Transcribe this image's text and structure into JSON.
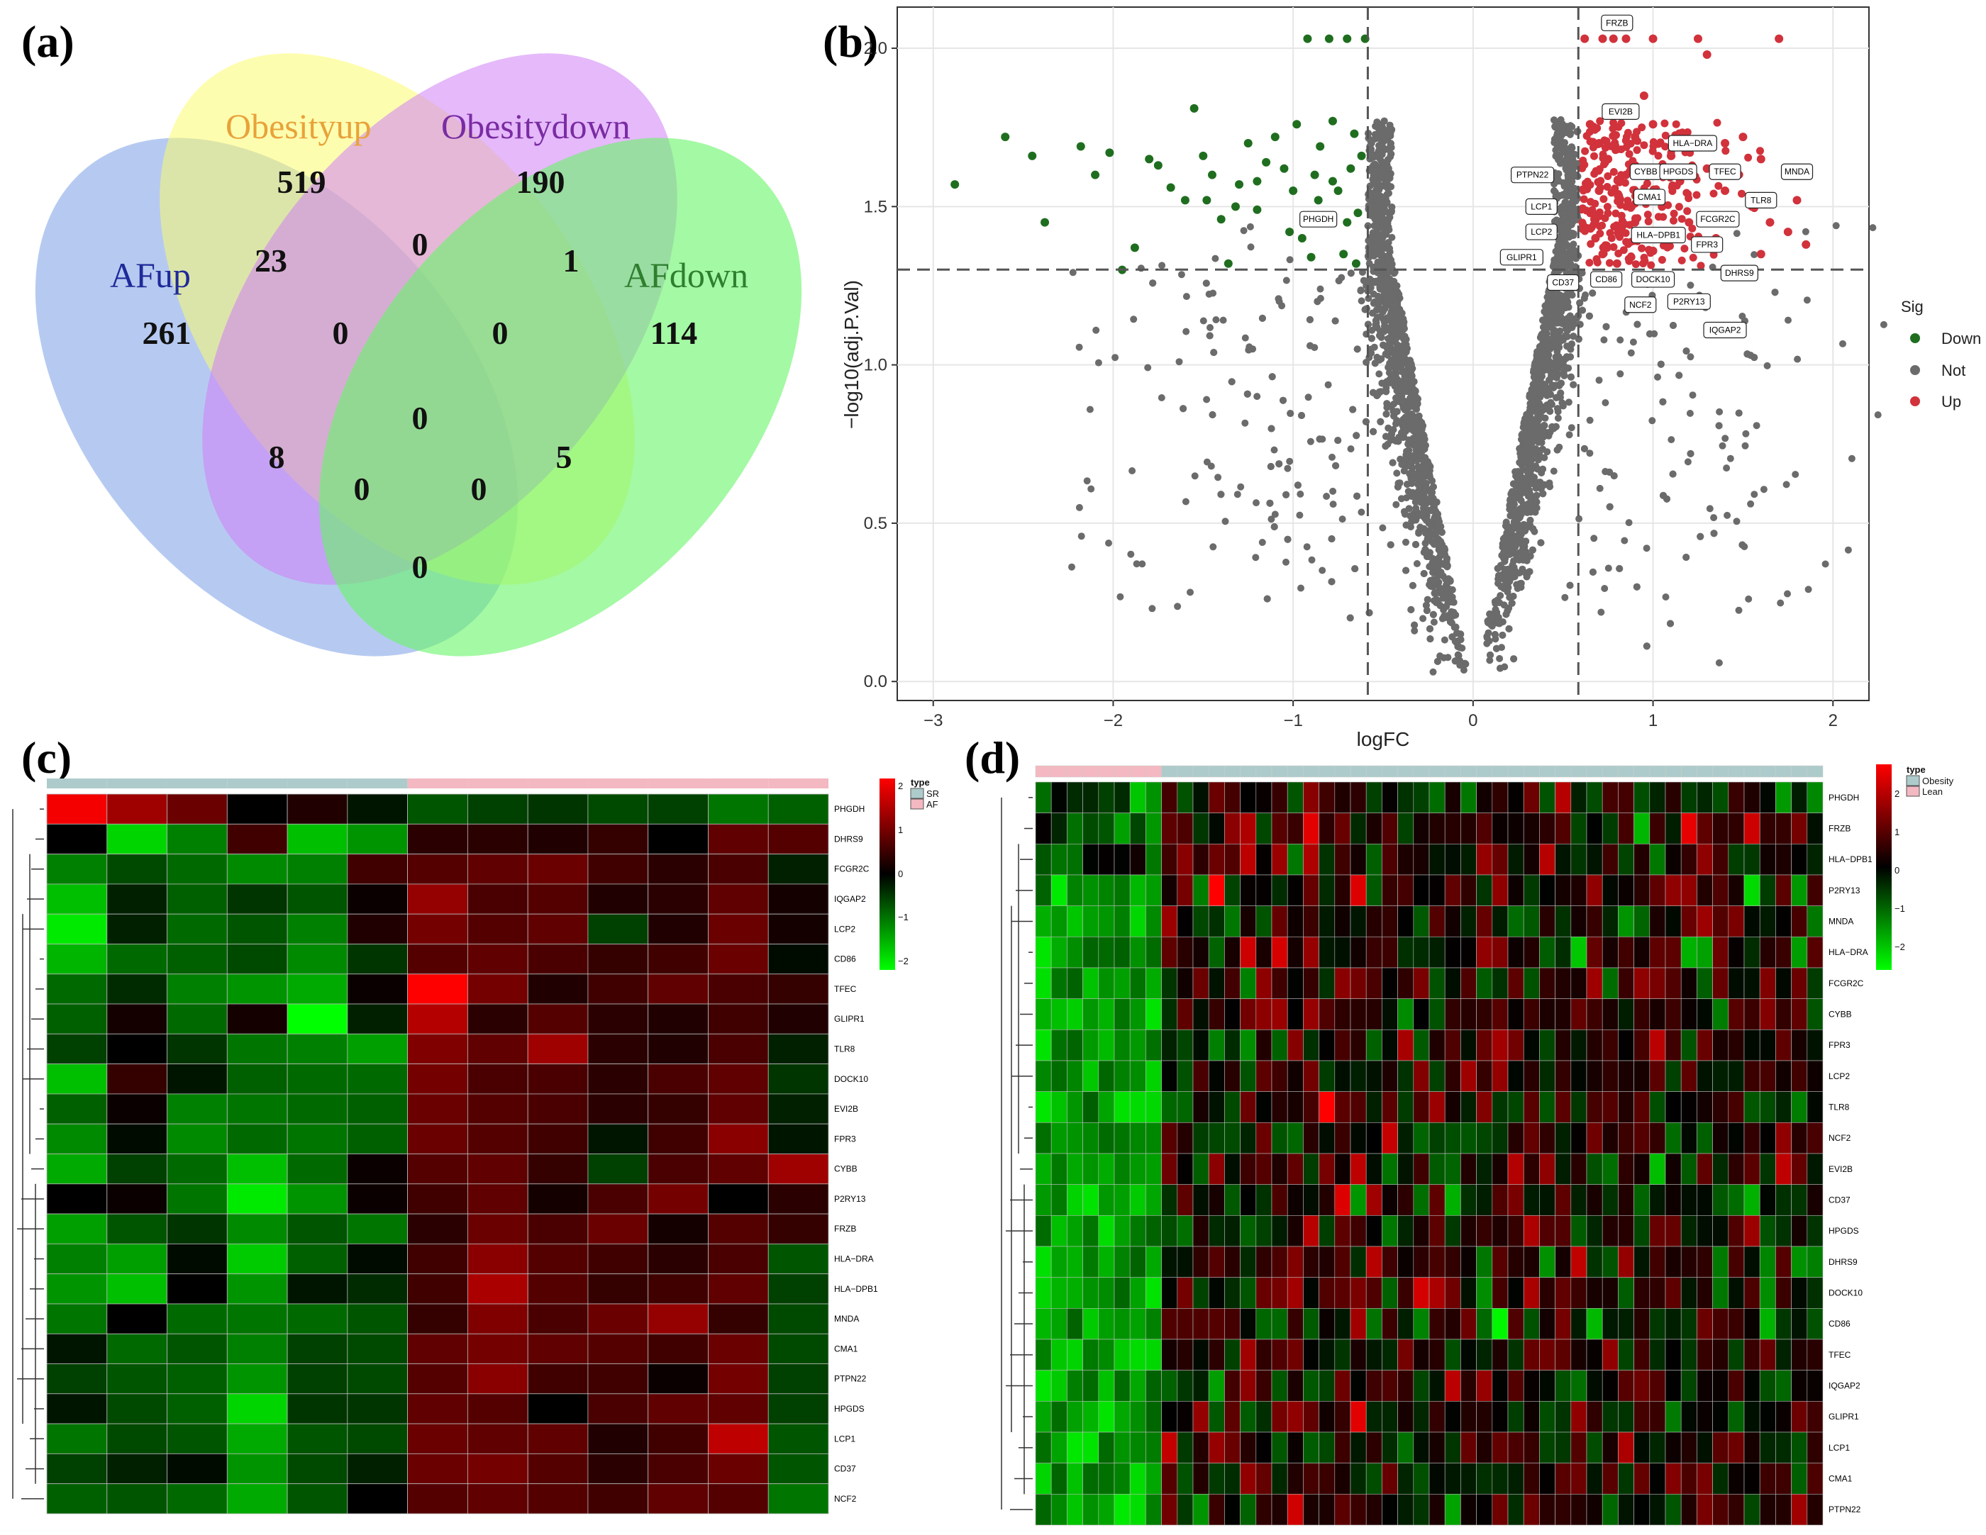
{
  "panel_labels": {
    "a": "(a)",
    "b": "(b)",
    "c": "(c)",
    "d": "(d)"
  },
  "colors": {
    "down": "#1f6e1f",
    "not": "#6b6b6b",
    "up": "#d1323b",
    "venn_afup": "#9db8ec",
    "venn_obesityup": "#fbfb6e",
    "venn_obesitydown": "#cf7ff5",
    "venn_afdown": "#67f567",
    "hm_low": "#00ff00",
    "hm_mid": "#000000",
    "hm_high": "#ff0000",
    "anno_sr": "#aecbcb",
    "anno_af": "#f3b8c1"
  },
  "chart_data": [
    {
      "type": "venn",
      "sets": [
        "AFup",
        "Obesityup",
        "Obesitydown",
        "AFdown"
      ],
      "set_label_colors": [
        "#1f2a99",
        "#e8a23a",
        "#7a2ca3",
        "#2f7f2f"
      ],
      "regions": [
        {
          "sets": [
            "AFup"
          ],
          "value": "261"
        },
        {
          "sets": [
            "Obesityup"
          ],
          "value": "519"
        },
        {
          "sets": [
            "Obesitydown"
          ],
          "value": "190"
        },
        {
          "sets": [
            "AFdown"
          ],
          "value": "114"
        },
        {
          "sets": [
            "AFup",
            "Obesityup"
          ],
          "value": "23"
        },
        {
          "sets": [
            "Obesityup",
            "Obesitydown"
          ],
          "value": "0"
        },
        {
          "sets": [
            "Obesitydown",
            "AFdown"
          ],
          "value": "1"
        },
        {
          "sets": [
            "AFup",
            "Obesityup",
            "Obesitydown"
          ],
          "value": "0"
        },
        {
          "sets": [
            "Obesityup",
            "Obesitydown",
            "AFdown"
          ],
          "value": "0"
        },
        {
          "sets": [
            "AFup",
            "Obesityup",
            "Obesitydown",
            "AFdown"
          ],
          "value": "0"
        },
        {
          "sets": [
            "AFup",
            "Obesitydown"
          ],
          "value": "8"
        },
        {
          "sets": [
            "Obesityup",
            "AFdown"
          ],
          "value": "5"
        },
        {
          "sets": [
            "AFup",
            "Obesitydown",
            "AFdown"
          ],
          "value": "0"
        },
        {
          "sets": [
            "AFup",
            "Obesityup",
            "AFdown"
          ],
          "value": "0"
        },
        {
          "sets": [
            "AFup",
            "AFdown"
          ],
          "value": "0"
        }
      ]
    },
    {
      "type": "scatter",
      "title": "",
      "xlabel": "logFC",
      "ylabel": "−log10(adj.P.Val)",
      "xlim": [
        -3.2,
        2.2
      ],
      "ylim": [
        -0.06,
        2.13
      ],
      "xticks": [
        -3,
        -2,
        -1,
        0,
        1,
        2
      ],
      "xtick_labels": [
        "−3",
        "−2",
        "−1",
        "0",
        "1",
        "2"
      ],
      "yticks": [
        0.0,
        0.5,
        1.0,
        1.5,
        2.0
      ],
      "ytick_labels": [
        "0.0",
        "0.5",
        "1.0",
        "1.5",
        "2.0"
      ],
      "vlines": [
        -0.585,
        0.585
      ],
      "hline": 1.301,
      "legend": {
        "title": "Sig",
        "entries": [
          "Down",
          "Not",
          "Up"
        ],
        "position": "right"
      },
      "down_points": [
        [
          -2.88,
          1.57
        ],
        [
          -2.6,
          1.72
        ],
        [
          -2.45,
          1.66
        ],
        [
          -2.38,
          1.45
        ],
        [
          -2.18,
          1.69
        ],
        [
          -2.1,
          1.6
        ],
        [
          -2.02,
          1.67
        ],
        [
          -1.95,
          1.3
        ],
        [
          -1.88,
          1.37
        ],
        [
          -1.8,
          1.65
        ],
        [
          -1.75,
          1.63
        ],
        [
          -1.68,
          1.56
        ],
        [
          -1.6,
          1.52
        ],
        [
          -1.55,
          1.81
        ],
        [
          -1.5,
          1.66
        ],
        [
          -1.45,
          1.6
        ],
        [
          -1.4,
          1.46
        ],
        [
          -1.36,
          1.32
        ],
        [
          -1.3,
          1.57
        ],
        [
          -1.25,
          1.7
        ],
        [
          -1.2,
          1.49
        ],
        [
          -1.15,
          1.64
        ],
        [
          -1.1,
          1.72
        ],
        [
          -1.05,
          1.62
        ],
        [
          -1.0,
          1.55
        ],
        [
          -0.98,
          1.76
        ],
        [
          -0.95,
          1.4
        ],
        [
          -0.92,
          2.03
        ],
        [
          -0.88,
          1.6
        ],
        [
          -0.85,
          1.69
        ],
        [
          -0.82,
          1.45
        ],
        [
          -0.8,
          2.03
        ],
        [
          -0.78,
          1.77
        ],
        [
          -0.75,
          1.55
        ],
        [
          -0.72,
          1.35
        ],
        [
          -0.7,
          2.03
        ],
        [
          -0.68,
          1.62
        ],
        [
          -0.66,
          1.73
        ],
        [
          -0.64,
          1.48
        ],
        [
          -0.62,
          1.66
        ],
        [
          -0.6,
          2.03
        ],
        [
          -0.9,
          1.34
        ],
        [
          -1.02,
          1.42
        ],
        [
          -1.2,
          1.58
        ],
        [
          -0.7,
          1.45
        ],
        [
          -0.65,
          1.32
        ],
        [
          -0.78,
          1.58
        ],
        [
          -1.32,
          1.5
        ],
        [
          -1.48,
          1.52
        ],
        [
          -0.86,
          1.52
        ]
      ],
      "up_points": [
        [
          0.62,
          2.03
        ],
        [
          0.72,
          2.03
        ],
        [
          0.78,
          2.03
        ],
        [
          0.85,
          2.03
        ],
        [
          1.0,
          2.03
        ],
        [
          1.25,
          2.03
        ],
        [
          1.3,
          1.98
        ],
        [
          1.7,
          2.03
        ],
        [
          0.65,
          1.76
        ],
        [
          0.7,
          1.7
        ],
        [
          0.75,
          1.65
        ],
        [
          0.8,
          1.8
        ],
        [
          0.85,
          1.6
        ],
        [
          0.9,
          1.72
        ],
        [
          0.95,
          1.55
        ],
        [
          1.0,
          1.76
        ],
        [
          1.05,
          1.5
        ],
        [
          1.1,
          1.66
        ],
        [
          1.15,
          1.58
        ],
        [
          1.2,
          1.45
        ],
        [
          1.25,
          1.7
        ],
        [
          1.3,
          1.62
        ],
        [
          1.35,
          1.4
        ],
        [
          1.4,
          1.55
        ],
        [
          1.45,
          1.6
        ],
        [
          1.5,
          1.72
        ],
        [
          1.55,
          1.5
        ],
        [
          1.6,
          1.65
        ],
        [
          1.65,
          1.45
        ],
        [
          1.75,
          1.6
        ],
        [
          1.8,
          1.52
        ],
        [
          1.85,
          1.38
        ],
        [
          0.68,
          1.4
        ],
        [
          0.72,
          1.35
        ],
        [
          0.8,
          1.32
        ],
        [
          0.9,
          1.45
        ],
        [
          1.0,
          1.36
        ],
        [
          1.1,
          1.4
        ],
        [
          0.95,
          1.85
        ],
        [
          1.05,
          1.62
        ],
        [
          1.4,
          1.7
        ],
        [
          0.7,
          1.55
        ],
        [
          0.88,
          1.5
        ],
        [
          1.15,
          1.72
        ],
        [
          1.6,
          1.35
        ],
        [
          1.75,
          1.42
        ]
      ],
      "gene_labels": [
        {
          "text": "FRZB",
          "x": 0.8,
          "y": 2.08
        },
        {
          "text": "EVI2B",
          "x": 0.82,
          "y": 1.8
        },
        {
          "text": "HLA−DRA",
          "x": 1.22,
          "y": 1.7
        },
        {
          "text": "PTPN22",
          "x": 0.33,
          "y": 1.6
        },
        {
          "text": "CYBB",
          "x": 0.96,
          "y": 1.61
        },
        {
          "text": "HPGDS",
          "x": 1.14,
          "y": 1.61
        },
        {
          "text": "TFEC",
          "x": 1.4,
          "y": 1.61
        },
        {
          "text": "MNDA",
          "x": 1.8,
          "y": 1.61
        },
        {
          "text": "CMA1",
          "x": 0.98,
          "y": 1.53
        },
        {
          "text": "TLR8",
          "x": 1.6,
          "y": 1.52
        },
        {
          "text": "LCP1",
          "x": 0.38,
          "y": 1.5
        },
        {
          "text": "FCGR2C",
          "x": 1.36,
          "y": 1.46
        },
        {
          "text": "PHGDH",
          "x": -0.86,
          "y": 1.46
        },
        {
          "text": "LCP2",
          "x": 0.38,
          "y": 1.42
        },
        {
          "text": "HLA−DPB1",
          "x": 1.03,
          "y": 1.41
        },
        {
          "text": "FPR3",
          "x": 1.3,
          "y": 1.38
        },
        {
          "text": "GLIPR1",
          "x": 0.27,
          "y": 1.34
        },
        {
          "text": "DHRS9",
          "x": 1.48,
          "y": 1.29
        },
        {
          "text": "CD37",
          "x": 0.5,
          "y": 1.26
        },
        {
          "text": "CD86",
          "x": 0.74,
          "y": 1.27
        },
        {
          "text": "DOCK10",
          "x": 1.0,
          "y": 1.27
        },
        {
          "text": "NCF2",
          "x": 0.93,
          "y": 1.19
        },
        {
          "text": "P2RY13",
          "x": 1.2,
          "y": 1.2
        },
        {
          "text": "IQGAP2",
          "x": 1.4,
          "y": 1.11
        }
      ]
    },
    {
      "type": "heatmap",
      "annotation_title": "type",
      "annotation_legend": [
        {
          "label": "SR",
          "color": "#aecbcb"
        },
        {
          "label": "AF",
          "color": "#f3b8c1"
        }
      ],
      "scale_ticks": [
        "2",
        "1",
        "0",
        "−1",
        "−2"
      ],
      "groups": [
        "SR",
        "SR",
        "SR",
        "SR",
        "SR",
        "SR",
        "AF",
        "AF",
        "AF",
        "AF",
        "AF",
        "AF",
        "AF"
      ],
      "rows": [
        "PHGDH",
        "DHRS9",
        "FCGR2C",
        "IQGAP2",
        "LCP2",
        "CD86",
        "TFEC",
        "GLIPR1",
        "TLR8",
        "DOCK10",
        "EVI2B",
        "FPR3",
        "CYBB",
        "P2RY13",
        "FRZB",
        "HLA−DRA",
        "HLA−DPB1",
        "MNDA",
        "CMA1",
        "PTPN22",
        "HPGDS",
        "LCP1",
        "CD37",
        "NCF2"
      ],
      "values": [
        [
          2.3,
          1.5,
          1.0,
          0.0,
          0.3,
          -0.2,
          -0.8,
          -0.6,
          -0.5,
          -0.7,
          -0.6,
          -1.1,
          -0.9
        ],
        [
          0.0,
          -2.0,
          -1.2,
          0.6,
          -1.8,
          -1.4,
          0.4,
          0.4,
          0.3,
          0.5,
          0.0,
          0.9,
          0.8
        ],
        [
          -1.2,
          -0.7,
          -1.0,
          -1.3,
          -1.2,
          0.6,
          0.8,
          0.9,
          1.0,
          0.6,
          0.4,
          0.7,
          -0.3
        ],
        [
          -1.8,
          -0.3,
          -0.9,
          -0.5,
          -0.8,
          0.1,
          1.4,
          0.7,
          0.8,
          0.3,
          0.4,
          0.9,
          0.2
        ],
        [
          -2.2,
          -0.3,
          -1.0,
          -0.8,
          -1.2,
          0.3,
          1.1,
          0.8,
          0.9,
          -0.6,
          0.3,
          1.0,
          0.2
        ],
        [
          -1.7,
          -1.0,
          -0.9,
          -0.7,
          -1.3,
          -0.5,
          0.8,
          0.9,
          0.7,
          0.5,
          0.6,
          1.0,
          -0.1
        ],
        [
          -1.0,
          -0.4,
          -1.2,
          -1.4,
          -1.6,
          0.1,
          2.4,
          1.1,
          0.3,
          0.6,
          0.9,
          0.7,
          0.5
        ],
        [
          -0.9,
          0.2,
          -1.0,
          0.2,
          -2.4,
          -0.3,
          1.7,
          0.4,
          0.8,
          0.4,
          0.3,
          0.6,
          0.3
        ],
        [
          -0.6,
          0.0,
          -0.5,
          -1.1,
          -1.2,
          -1.5,
          1.2,
          0.9,
          1.5,
          0.4,
          0.3,
          0.7,
          -0.3
        ],
        [
          -1.8,
          0.5,
          -0.2,
          -0.9,
          -1.0,
          -1.0,
          1.1,
          0.7,
          0.7,
          0.4,
          0.7,
          0.9,
          -0.5
        ],
        [
          -0.9,
          0.1,
          -1.2,
          -1.1,
          -1.0,
          -0.9,
          1.0,
          0.8,
          0.7,
          0.4,
          0.5,
          0.9,
          -0.3
        ],
        [
          -1.3,
          -0.1,
          -1.3,
          -1.0,
          -1.1,
          -0.9,
          1.0,
          0.8,
          0.6,
          -0.2,
          0.6,
          1.3,
          -0.2
        ],
        [
          -1.6,
          -0.6,
          -1.0,
          -1.8,
          -1.0,
          0.1,
          0.8,
          0.9,
          0.5,
          -0.6,
          0.7,
          0.9,
          1.5
        ],
        [
          0.0,
          0.1,
          -1.1,
          -2.2,
          -1.4,
          0.1,
          0.6,
          0.9,
          0.2,
          0.7,
          1.1,
          0.0,
          0.4
        ],
        [
          -1.5,
          -0.8,
          -0.5,
          -1.3,
          -0.8,
          -1.1,
          0.4,
          1.0,
          0.7,
          1.0,
          0.2,
          0.8,
          0.5
        ],
        [
          -1.2,
          -1.5,
          -0.1,
          -1.9,
          -0.9,
          -0.1,
          0.6,
          1.3,
          0.8,
          0.6,
          0.4,
          0.7,
          -0.8
        ],
        [
          -1.4,
          -1.8,
          0.0,
          -1.4,
          -0.2,
          -0.4,
          0.6,
          1.6,
          0.8,
          0.5,
          0.6,
          0.9,
          -0.6
        ],
        [
          -1.1,
          0.0,
          -1.0,
          -1.1,
          -1.0,
          -0.8,
          0.5,
          1.2,
          0.7,
          1.0,
          1.4,
          0.5,
          -0.7
        ],
        [
          -0.2,
          -1.0,
          -0.8,
          -1.2,
          -0.6,
          -0.7,
          0.9,
          1.1,
          0.9,
          0.8,
          0.6,
          1.0,
          -0.7
        ],
        [
          -0.6,
          -0.8,
          -0.9,
          -1.4,
          -0.6,
          -0.7,
          0.8,
          1.3,
          0.6,
          0.6,
          0.1,
          1.1,
          -0.6
        ],
        [
          -0.2,
          -0.7,
          -0.9,
          -2.0,
          -0.5,
          -0.5,
          0.9,
          0.8,
          0.0,
          0.7,
          0.9,
          0.9,
          -0.6
        ],
        [
          -1.1,
          -0.7,
          -0.8,
          -1.6,
          -0.8,
          -0.7,
          1.0,
          0.9,
          0.9,
          0.3,
          0.6,
          1.8,
          -0.8
        ],
        [
          -0.6,
          -0.3,
          -0.1,
          -1.4,
          -0.7,
          -0.3,
          1.0,
          1.1,
          0.8,
          0.4,
          0.7,
          1.0,
          -0.8
        ],
        [
          -0.9,
          -0.8,
          -1.0,
          -1.6,
          -0.8,
          0.0,
          0.8,
          0.9,
          0.8,
          0.6,
          0.9,
          0.8,
          -1.1
        ]
      ]
    },
    {
      "type": "heatmap",
      "annotation_title": "type",
      "annotation_legend": [
        {
          "label": "Obesity",
          "color": "#aecbcb"
        },
        {
          "label": "Lean",
          "color": "#f3b8c1"
        }
      ],
      "scale_ticks": [
        "2",
        "1",
        "0",
        "−1",
        "−2"
      ],
      "n_lean": 8,
      "n_obesity": 42,
      "rows": [
        "PHGDH",
        "FRZB",
        "HLA−DPB1",
        "P2RY13",
        "MNDA",
        "HLA−DRA",
        "FCGR2C",
        "CYBB",
        "FPR3",
        "LCP2",
        "TLR8",
        "NCF2",
        "EVI2B",
        "CD37",
        "HPGDS",
        "DHRS9",
        "DOCK10",
        "CD86",
        "TFEC",
        "IQGAP2",
        "GLIPR1",
        "LCP1",
        "CMA1",
        "PTPN22"
      ],
      "note": "values: 24 rows x 50 columns, z-scored expression; Lean columns mostly low (green), Obesity columns mixed"
    }
  ]
}
